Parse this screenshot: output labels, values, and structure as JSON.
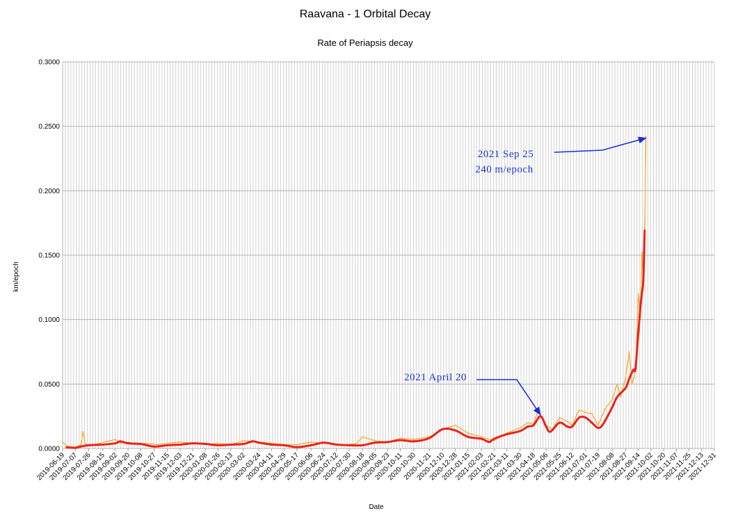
{
  "chart_data": {
    "type": "line",
    "title": "Raavana - 1 Orbital Decay",
    "subtitle": "Rate of Periapsis decay",
    "xlabel": "Date",
    "ylabel": "km/epoch",
    "ylim": [
      0,
      0.3
    ],
    "yticks": [
      "0.0000",
      "0.0500",
      "0.1000",
      "0.1500",
      "0.2000",
      "0.2500",
      "0.3000"
    ],
    "xlim": [
      "2019-06-19",
      "2021-12-31"
    ],
    "xtick_labels": [
      "2019-06-19",
      "2019-07-07",
      "2019-07-26",
      "2019-08-15",
      "2019-09-02",
      "2019-09-20",
      "2019-10-08",
      "2019-10-27",
      "2019-11-15",
      "2019-12-03",
      "2019-12-21",
      "2020-01-08",
      "2020-01-26",
      "2020-02-13",
      "2020-03-02",
      "2020-03-24",
      "2020-04-11",
      "2020-04-29",
      "2020-05-17",
      "2020-06-06",
      "2020-06-24",
      "2020-07-12",
      "2020-07-30",
      "2020-08-18",
      "2020-09-05",
      "2020-09-23",
      "2020-10-11",
      "2020-10-30",
      "2020-11-21",
      "2020-12-10",
      "2020-12-28",
      "2021-01-15",
      "2021-02-03",
      "2021-02-21",
      "2021-03-11",
      "2021-03-30",
      "2021-04-18",
      "2021-05-06",
      "2021-05-25",
      "2021-06-12",
      "2021-07-01",
      "2021-07-19",
      "2021-08-08",
      "2021-08-27",
      "2021-09-14",
      "2021-10-02",
      "2021-10-20",
      "2021-11-07",
      "2021-11-25",
      "2021-12-13",
      "2021-12-31"
    ],
    "grid": true,
    "series": [
      {
        "color": "#f5a623",
        "style": "spiky",
        "x": [
          "2019-06-19",
          "2019-06-25",
          "2019-07-07",
          "2019-07-15",
          "2019-07-18",
          "2019-07-21",
          "2019-07-26",
          "2019-08-10",
          "2019-08-25",
          "2019-09-02",
          "2019-09-10",
          "2019-09-20",
          "2019-10-05",
          "2019-10-15",
          "2019-11-01",
          "2019-11-15",
          "2019-12-03",
          "2019-12-21",
          "2020-01-08",
          "2020-01-26",
          "2020-02-13",
          "2020-03-02",
          "2020-03-24",
          "2020-04-11",
          "2020-04-29",
          "2020-05-17",
          "2020-06-06",
          "2020-06-24",
          "2020-07-12",
          "2020-07-30",
          "2020-08-10",
          "2020-08-18",
          "2020-09-05",
          "2020-09-23",
          "2020-10-11",
          "2020-10-30",
          "2020-11-21",
          "2020-12-10",
          "2020-12-28",
          "2021-01-15",
          "2021-02-03",
          "2021-02-21",
          "2021-03-11",
          "2021-03-30",
          "2021-04-10",
          "2021-04-18",
          "2021-04-25",
          "2021-05-06",
          "2021-05-15",
          "2021-05-25",
          "2021-06-05",
          "2021-06-12",
          "2021-06-22",
          "2021-07-01",
          "2021-07-10",
          "2021-07-19",
          "2021-07-28",
          "2021-08-08",
          "2021-08-15",
          "2021-08-20",
          "2021-08-27",
          "2021-09-01",
          "2021-09-05",
          "2021-09-10",
          "2021-09-14",
          "2021-09-17",
          "2021-09-19",
          "2021-09-21",
          "2021-09-23",
          "2021-09-25"
        ],
        "y": [
          0.005,
          0.002,
          0.001,
          0.003,
          0.013,
          0.004,
          0.002,
          0.004,
          0.006,
          0.007,
          0.004,
          0.005,
          0.003,
          0.004,
          0.003,
          0.004,
          0.005,
          0.004,
          0.003,
          0.004,
          0.003,
          0.006,
          0.005,
          0.004,
          0.003,
          0.003,
          0.005,
          0.004,
          0.003,
          0.003,
          0.004,
          0.009,
          0.006,
          0.005,
          0.008,
          0.007,
          0.009,
          0.015,
          0.018,
          0.012,
          0.009,
          0.006,
          0.012,
          0.016,
          0.02,
          0.019,
          0.03,
          0.018,
          0.015,
          0.024,
          0.021,
          0.018,
          0.03,
          0.028,
          0.027,
          0.018,
          0.03,
          0.038,
          0.05,
          0.04,
          0.055,
          0.075,
          0.05,
          0.06,
          0.12,
          0.1,
          0.152,
          0.13,
          0.17,
          0.242
        ]
      },
      {
        "color": "#e8231c",
        "style": "smooth",
        "x": [
          "2019-06-25",
          "2019-07-07",
          "2019-07-15",
          "2019-07-26",
          "2019-08-15",
          "2019-09-02",
          "2019-09-09",
          "2019-09-20",
          "2019-10-08",
          "2019-10-27",
          "2019-11-15",
          "2019-12-03",
          "2019-12-21",
          "2020-01-08",
          "2020-01-26",
          "2020-02-13",
          "2020-03-02",
          "2020-03-15",
          "2020-03-24",
          "2020-04-11",
          "2020-04-29",
          "2020-05-17",
          "2020-06-06",
          "2020-06-24",
          "2020-07-12",
          "2020-07-30",
          "2020-08-18",
          "2020-09-05",
          "2020-09-23",
          "2020-10-11",
          "2020-10-30",
          "2020-11-21",
          "2020-12-10",
          "2020-12-28",
          "2021-01-15",
          "2021-02-03",
          "2021-02-14",
          "2021-02-21",
          "2021-03-11",
          "2021-03-30",
          "2021-04-10",
          "2021-04-18",
          "2021-04-28",
          "2021-05-06",
          "2021-05-12",
          "2021-05-25",
          "2021-06-05",
          "2021-06-12",
          "2021-06-22",
          "2021-07-01",
          "2021-07-10",
          "2021-07-19",
          "2021-07-26",
          "2021-08-08",
          "2021-08-15",
          "2021-08-27",
          "2021-09-01",
          "2021-09-07",
          "2021-09-10",
          "2021-09-14",
          "2021-09-17",
          "2021-09-19",
          "2021-09-21",
          "2021-09-23"
        ],
        "y": [
          0.0008,
          0.0005,
          0.0015,
          0.0025,
          0.003,
          0.004,
          0.0055,
          0.004,
          0.0035,
          0.0015,
          0.0025,
          0.003,
          0.004,
          0.0035,
          0.0025,
          0.003,
          0.0035,
          0.0055,
          0.0045,
          0.003,
          0.0025,
          0.001,
          0.0025,
          0.0045,
          0.003,
          0.0025,
          0.0025,
          0.0045,
          0.005,
          0.0065,
          0.0055,
          0.008,
          0.015,
          0.014,
          0.009,
          0.0075,
          0.005,
          0.0075,
          0.011,
          0.0135,
          0.017,
          0.018,
          0.025,
          0.017,
          0.013,
          0.02,
          0.017,
          0.017,
          0.024,
          0.024,
          0.02,
          0.016,
          0.019,
          0.032,
          0.04,
          0.047,
          0.054,
          0.061,
          0.062,
          0.09,
          0.11,
          0.12,
          0.13,
          0.169
        ]
      }
    ],
    "annotations": [
      {
        "lines": [
          "2021  Sep  25",
          "240  m/epoch"
        ],
        "target_x": "2021-09-25",
        "target_y": 0.242
      },
      {
        "lines": [
          "2021  April  20"
        ],
        "target_x": "2021-04-28",
        "target_y": 0.025
      }
    ]
  }
}
